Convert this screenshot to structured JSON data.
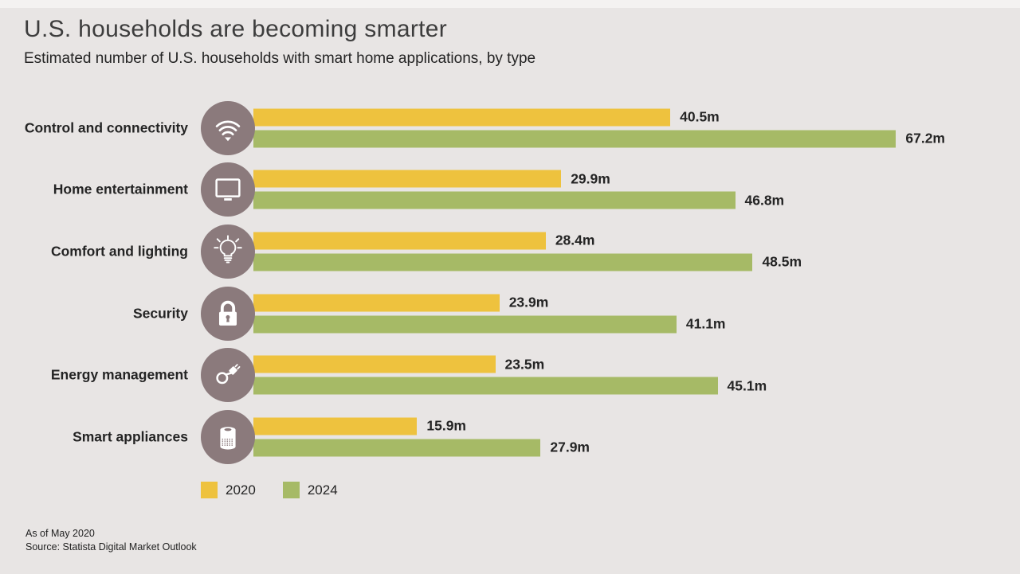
{
  "page": {
    "footnote_line1": "As of May 2020",
    "footnote_line2": "Source: Statista Digital Market Outlook"
  },
  "colors": {
    "background": "#e8e5e4",
    "icon_circle": "#8b7a7c",
    "bar_2020": "#eec23e",
    "bar_2024": "#a6ba66",
    "text": "#242424"
  },
  "chart_data": {
    "type": "bar",
    "orientation": "horizontal",
    "title": "U.S. households are becoming smarter",
    "subtitle": "Estimated number of U.S. households with smart home applications, by type",
    "unit": "million households",
    "axis_max": 67.2,
    "grid": false,
    "legend_position": "bottom",
    "categories": [
      "Control and connectivity",
      "Home entertainment",
      "Comfort and lighting",
      "Security",
      "Energy management",
      "Smart appliances"
    ],
    "category_icons": [
      "wifi-icon",
      "tv-icon",
      "lightbulb-icon",
      "lock-icon",
      "plug-icon",
      "appliance-icon"
    ],
    "series": [
      {
        "name": "2020",
        "color": "#eec23e",
        "values": [
          40.5,
          29.9,
          28.4,
          23.9,
          23.5,
          15.9
        ],
        "labels": [
          "40.5m",
          "29.9m",
          "28.4m",
          "23.9m",
          "23.5m",
          "15.9m"
        ]
      },
      {
        "name": "2024",
        "color": "#a6ba66",
        "values": [
          67.2,
          46.8,
          48.5,
          41.1,
          45.1,
          27.9
        ],
        "labels": [
          "67.2m",
          "46.8m",
          "48.5m",
          "41.1m",
          "45.1m",
          "27.9m"
        ]
      }
    ]
  }
}
